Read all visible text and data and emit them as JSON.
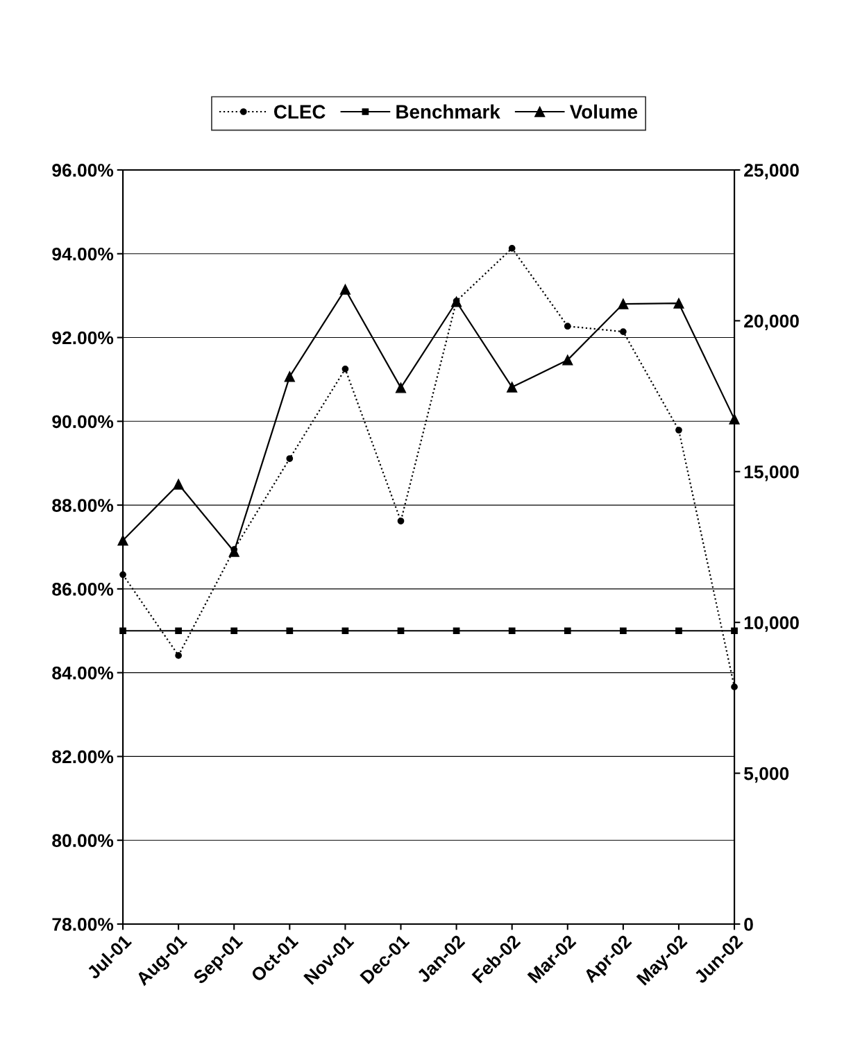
{
  "chart_data": {
    "type": "line",
    "categories": [
      "Jul-01",
      "Aug-01",
      "Sep-01",
      "Oct-01",
      "Nov-01",
      "Dec-01",
      "Jan-02",
      "Feb-02",
      "Mar-02",
      "Apr-02",
      "May-02",
      "Jun-02"
    ],
    "series": [
      {
        "name": "CLEC",
        "color": "#000000",
        "marker": "circle",
        "line_style": "dotted",
        "values": [
          86.34,
          84.41,
          86.94,
          89.11,
          91.25,
          87.62,
          92.87,
          94.13,
          92.27,
          92.14,
          89.79,
          83.66
        ]
      },
      {
        "name": "Benchmark",
        "color": "#000000",
        "marker": "square",
        "line_style": "solid",
        "values": [
          85,
          85,
          85,
          85,
          85,
          85,
          85,
          85,
          85,
          85,
          85,
          85
        ]
      },
      {
        "name": "Volume",
        "color": "#000000",
        "marker": "triangle",
        "line_style": "solid",
        "axis": "y2",
        "values": [
          12720,
          14580,
          12350,
          18150,
          21040,
          17780,
          20630,
          17800,
          18700,
          20560,
          20580,
          16740
        ]
      }
    ],
    "ylim": [
      78,
      96
    ],
    "yticks": [
      {
        "value": 78,
        "label": "78.00%"
      },
      {
        "value": 80,
        "label": "80.00%"
      },
      {
        "value": 82,
        "label": "82.00%"
      },
      {
        "value": 84,
        "label": "84.00%"
      },
      {
        "value": 86,
        "label": "86.00%"
      },
      {
        "value": 88,
        "label": "88.00%"
      },
      {
        "value": 90,
        "label": "90.00%"
      },
      {
        "value": 92,
        "label": "92.00%"
      },
      {
        "value": 94,
        "label": "94.00%"
      },
      {
        "value": 96,
        "label": "96.00%"
      }
    ],
    "y2lim": [
      0,
      25000
    ],
    "y2ticks": [
      0,
      {
        "value": 5000,
        "label": "5,000"
      },
      {
        "value": 10000,
        "label": "10,000"
      },
      {
        "value": 15000,
        "label": "15,000"
      },
      {
        "value": 20000,
        "label": "20,000"
      },
      {
        "value": 25000,
        "label": "25,000"
      }
    ],
    "grid": "y",
    "legend": "top"
  }
}
